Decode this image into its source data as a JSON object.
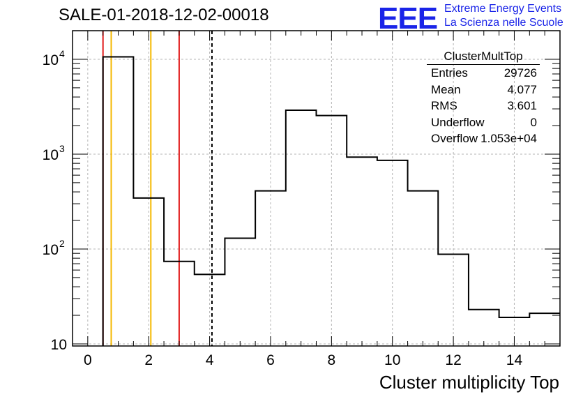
{
  "header": {
    "title": "SALE-01-2018-12-02-00018"
  },
  "logo": {
    "mark": "EEE",
    "line1": "Extreme Energy Events",
    "line2": "La Scienza nelle Scuole",
    "color": "#1a24e8"
  },
  "stats": {
    "name": "ClusterMultTop",
    "rows": [
      {
        "key": "Entries",
        "value": "29726"
      },
      {
        "key": "Mean",
        "value": "4.077"
      },
      {
        "key": "RMS",
        "value": "3.601"
      },
      {
        "key": "Underflow",
        "value": "0"
      },
      {
        "key": "Overflow",
        "value": "1.053e+04"
      }
    ]
  },
  "chart_data": {
    "type": "histogram",
    "title": "SALE-01-2018-12-02-00018",
    "xlabel": "Cluster multiplicity Top",
    "ylabel": "",
    "xlim": [
      -0.5,
      15.5
    ],
    "ylim": [
      9.5,
      20000
    ],
    "yscale": "log",
    "grid": true,
    "x_ticks": [
      "0",
      "2",
      "4",
      "6",
      "8",
      "10",
      "12",
      "14"
    ],
    "y_ticks": [
      {
        "base": "10",
        "exp": ""
      },
      {
        "base": "10",
        "exp": "2"
      },
      {
        "base": "10",
        "exp": "3"
      },
      {
        "base": "10",
        "exp": "4"
      }
    ],
    "bin_edges": [
      0.5,
      1.5,
      2.5,
      3.5,
      4.5,
      5.5,
      6.5,
      7.5,
      8.5,
      9.5,
      10.5,
      11.5,
      12.5,
      13.5,
      14.5,
      15.5
    ],
    "values": [
      10600,
      345,
      74,
      54,
      130,
      410,
      2900,
      2550,
      930,
      860,
      410,
      88,
      23,
      19,
      21
    ],
    "vertical_lines": [
      {
        "x": 0.5,
        "color": "#e11a1a",
        "style": "solid"
      },
      {
        "x": 0.77,
        "color": "#f5b800",
        "style": "solid"
      },
      {
        "x": 2.07,
        "color": "#f5b800",
        "style": "solid"
      },
      {
        "x": 3.0,
        "color": "#e11a1a",
        "style": "solid"
      },
      {
        "x": 4.077,
        "color": "#000000",
        "style": "dashed"
      }
    ]
  }
}
